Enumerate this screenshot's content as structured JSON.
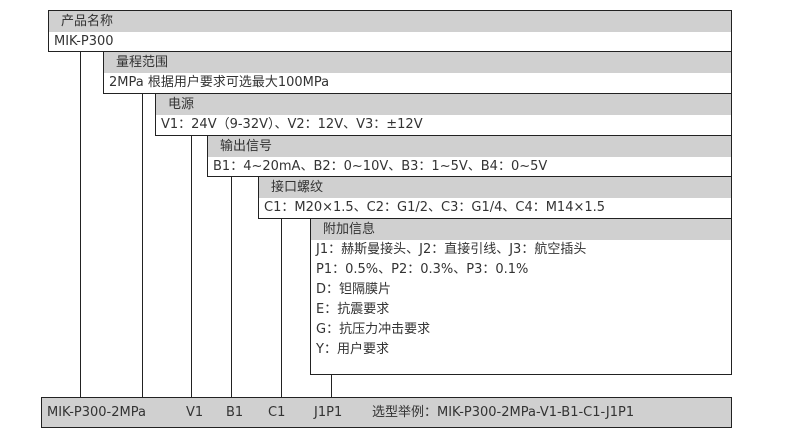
{
  "levels": [
    {
      "title": "产品名称",
      "values": [
        "MIK-P300"
      ]
    },
    {
      "title": "量程范围",
      "values": [
        "2MPa 根据用户要求可选最大100MPa"
      ]
    },
    {
      "title": "电源",
      "values": [
        "V1：24V（9-32V）、V2：12V、V3：±12V"
      ]
    },
    {
      "title": "输出信号",
      "values": [
        "B1：4~20mA、B2：0~10V、B3：1~5V、B4：0~5V"
      ]
    },
    {
      "title": "接口螺纹",
      "values": [
        "C1：M20×1.5、C2：G1/2、C3：G1/4、C4：M14×1.5"
      ]
    },
    {
      "title": "附加信息",
      "values": [
        "J1：赫斯曼接头、J2：直接引线、J3：航空插头",
        "P1：0.5%、P2：0.3%、P3：0.1%",
        "D：钽隔膜片",
        "E：抗震要求",
        "G：抗压力冲击要求",
        "Y：用户要求"
      ]
    }
  ],
  "example": {
    "parts": [
      "MIK-P300-2MPa",
      "V1",
      "B1",
      "C1",
      "J1P1"
    ],
    "label": "选型举例：MIK-P300-2MPa-V1-B1-C1-J1P1"
  }
}
